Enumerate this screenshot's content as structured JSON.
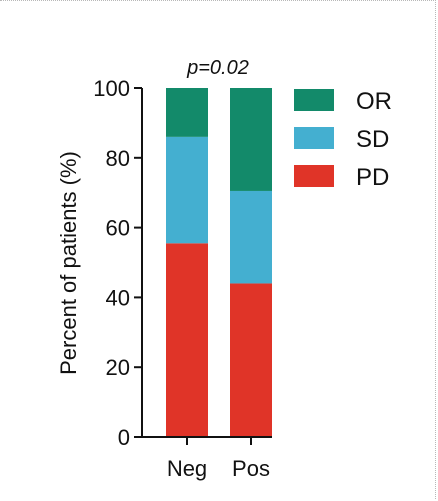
{
  "chart_data": {
    "type": "bar",
    "stacked": true,
    "categories": [
      "Neg",
      "Pos"
    ],
    "series": [
      {
        "name": "PD",
        "values": [
          55.5,
          44.0
        ],
        "color": "#e03428"
      },
      {
        "name": "SD",
        "values": [
          30.5,
          26.5
        ],
        "color": "#44afd0"
      },
      {
        "name": "OR",
        "values": [
          14.0,
          29.5
        ],
        "color": "#138a6a"
      }
    ],
    "ylabel": "Percent of patients (%)",
    "ylim": [
      0,
      100
    ],
    "yticks": [
      0,
      20,
      40,
      60,
      80,
      100
    ],
    "annotation": "p=0.02",
    "legend": {
      "position": "right",
      "order": [
        "OR",
        "SD",
        "PD"
      ]
    },
    "grid": false
  }
}
